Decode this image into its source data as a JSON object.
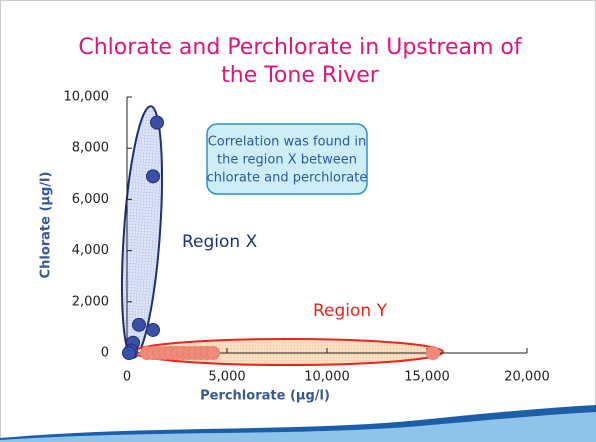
{
  "chart_data": {
    "type": "scatter",
    "title": [
      "Chlorate and Perchlorate in Upstream of",
      "the Tone River"
    ],
    "x_label": "Perchlorate (μg/l)",
    "y_label": "Chlorate (μg/l)",
    "xlim": [
      0,
      20000
    ],
    "ylim": [
      0,
      10000
    ],
    "xticks": [
      0,
      {
        "value": 5000,
        "label": "5,000"
      },
      {
        "value": 10000,
        "label": "10,000"
      },
      {
        "value": 15000,
        "label": "15,000"
      },
      {
        "value": 20000,
        "label": "20,000"
      }
    ],
    "yticks": [
      0,
      {
        "value": 2000,
        "label": "2,000"
      },
      {
        "value": 4000,
        "label": "4,000"
      },
      {
        "value": 6000,
        "label": "6,000"
      },
      {
        "value": 8000,
        "label": "8,000"
      },
      {
        "value": 10000,
        "label": "10,000"
      }
    ],
    "series": [
      {
        "color": "#3a4fa8",
        "x": [
          1500,
          1300,
          600,
          1300,
          300,
          200,
          100
        ],
        "values": [
          9000,
          6900,
          1100,
          900,
          400,
          100,
          0
        ]
      },
      {
        "color": "#f08a7a",
        "x": [
          1000,
          1300,
          1600,
          1900,
          2200,
          2500,
          2800,
          3100,
          3400,
          3700,
          4000,
          4300,
          15300
        ],
        "values": [
          0,
          0,
          0,
          0,
          0,
          0,
          0,
          0,
          0,
          0,
          0,
          0,
          0
        ]
      }
    ],
    "annotations": [
      "Region X",
      "Region Y",
      [
        "Correlation was found in",
        "the region X between",
        "chlorate and perchlorate"
      ]
    ]
  }
}
